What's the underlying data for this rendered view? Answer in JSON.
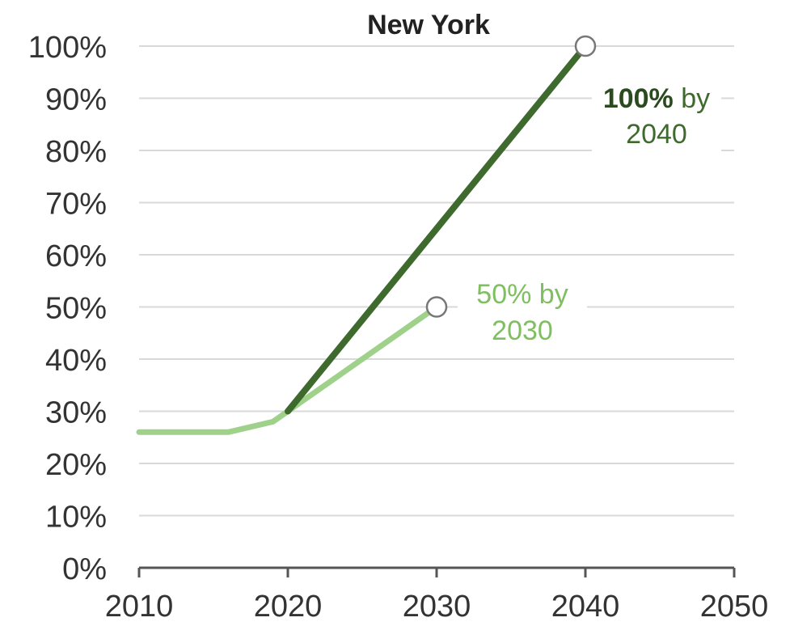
{
  "chart_data": {
    "type": "line",
    "title": "New York",
    "xlabel": "",
    "ylabel": "",
    "xlim": [
      2010,
      2050
    ],
    "ylim": [
      0,
      100
    ],
    "x_ticks": [
      "2010",
      "2020",
      "2030",
      "2040",
      "2050"
    ],
    "y_ticks": [
      "0%",
      "10%",
      "20%",
      "30%",
      "40%",
      "50%",
      "60%",
      "70%",
      "80%",
      "90%",
      "100%"
    ],
    "grid": true,
    "series": [
      {
        "color": "#9fd18a",
        "points": [
          [
            2010,
            26
          ],
          [
            2016,
            26
          ],
          [
            2019,
            28
          ],
          [
            2020,
            30
          ],
          [
            2030,
            50
          ]
        ],
        "endpoint": [
          2030,
          50
        ]
      },
      {
        "color": "#3f6a2e",
        "points": [
          [
            2020,
            30
          ],
          [
            2040,
            100
          ]
        ],
        "endpoint": [
          2040,
          100
        ]
      }
    ],
    "annotations": [
      {
        "line1_bold": "100%",
        "line1_rest": " by",
        "line2": "2040",
        "color": "#3f6a2e",
        "bold_color": "#2c4a1f",
        "anchor": [
          2040,
          100
        ]
      },
      {
        "line1_bold": "",
        "line1_rest": "50% by",
        "line2": "2030",
        "color": "#7fbf60",
        "bold_color": "#7fbf60",
        "anchor": [
          2030,
          50
        ]
      }
    ]
  }
}
